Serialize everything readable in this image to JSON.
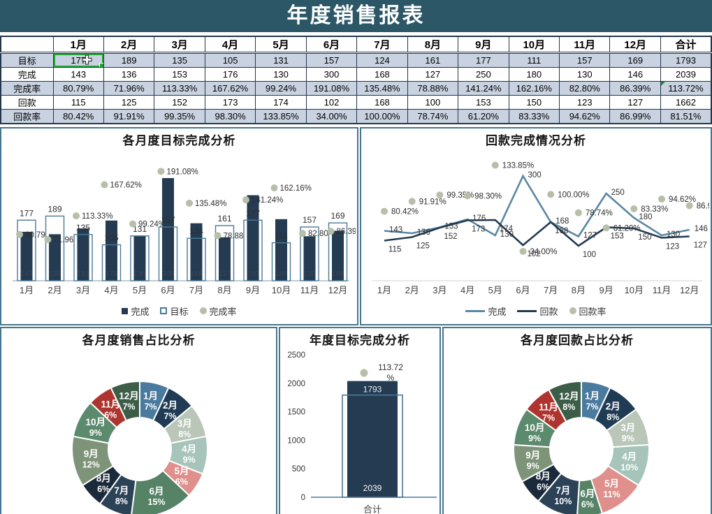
{
  "title": "年度销售报表",
  "table": {
    "corner": "",
    "columns": [
      "1月",
      "2月",
      "3月",
      "4月",
      "5月",
      "6月",
      "7月",
      "8月",
      "9月",
      "10月",
      "11月",
      "12月",
      "合计"
    ],
    "rows": [
      {
        "label": "目标",
        "banded": true,
        "values": [
          "177",
          "189",
          "135",
          "105",
          "131",
          "157",
          "124",
          "161",
          "177",
          "111",
          "157",
          "169",
          "1793"
        ]
      },
      {
        "label": "完成",
        "banded": false,
        "values": [
          "143",
          "136",
          "153",
          "176",
          "130",
          "300",
          "168",
          "127",
          "250",
          "180",
          "130",
          "146",
          "2039"
        ]
      },
      {
        "label": "完成率",
        "banded": true,
        "values": [
          "80.79%",
          "71.96%",
          "113.33%",
          "167.62%",
          "99.24%",
          "191.08%",
          "135.48%",
          "78.88%",
          "141.24%",
          "162.16%",
          "82.80%",
          "86.39%",
          "113.72%"
        ]
      },
      {
        "label": "回款",
        "banded": false,
        "values": [
          "115",
          "125",
          "152",
          "173",
          "174",
          "102",
          "168",
          "100",
          "153",
          "150",
          "123",
          "127",
          "1662"
        ]
      },
      {
        "label": "回款率",
        "banded": true,
        "values": [
          "80.42%",
          "91.91%",
          "99.35%",
          "98.30%",
          "133.85%",
          "34.00%",
          "100.00%",
          "78.74%",
          "61.20%",
          "83.33%",
          "94.62%",
          "86.99%",
          "81.51%"
        ]
      }
    ],
    "selected_cell": {
      "row": "目标",
      "column": "1月",
      "value": "177"
    },
    "error_flag_cell": {
      "row": "完成率",
      "column": "合计",
      "value": "113.72%"
    }
  },
  "chart_data": [
    {
      "type": "bar",
      "title": "各月度目标完成分析",
      "categories": [
        "1月",
        "2月",
        "3月",
        "4月",
        "5月",
        "6月",
        "7月",
        "8月",
        "9月",
        "10月",
        "11月",
        "12月"
      ],
      "series": [
        {
          "name": "完成",
          "values": [
            143,
            136,
            153,
            176,
            130,
            300,
            168,
            127,
            250,
            180,
            130,
            146
          ]
        },
        {
          "name": "目标",
          "values": [
            177,
            189,
            135,
            105,
            131,
            157,
            124,
            161,
            177,
            111,
            157,
            169
          ]
        },
        {
          "name": "完成率",
          "values": [
            "80.79%",
            "71.96%",
            "113.33%",
            "167.62%",
            "99.24%",
            "191.08%",
            "135.48%",
            "78.88%",
            "141.24%",
            "162.16%",
            "82.80%",
            "86.39%"
          ]
        }
      ],
      "legend_position": "bottom"
    },
    {
      "type": "line",
      "title": "回款完成情况分析",
      "categories": [
        "1月",
        "2月",
        "3月",
        "4月",
        "5月",
        "6月",
        "7月",
        "8月",
        "9月",
        "10月",
        "11月",
        "12月"
      ],
      "series": [
        {
          "name": "完成",
          "values": [
            143,
            136,
            153,
            176,
            130,
            300,
            168,
            127,
            250,
            180,
            130,
            146
          ]
        },
        {
          "name": "回款",
          "values": [
            115,
            125,
            152,
            173,
            174,
            102,
            168,
            100,
            153,
            150,
            123,
            127
          ]
        },
        {
          "name": "回款率",
          "values": [
            "80.42%",
            "91.91%",
            "99.35%",
            "98.30%",
            "133.85%",
            "34.00%",
            "100.00%",
            "78.74%",
            "61.20%",
            "83.33%",
            "94.62%",
            "86.99%"
          ]
        }
      ],
      "legend_position": "bottom"
    },
    {
      "type": "pie",
      "title": "各月度销售占比分析",
      "labels": [
        "1月",
        "2月",
        "3月",
        "4月",
        "5月",
        "6月",
        "7月",
        "8月",
        "9月",
        "10月",
        "11月",
        "12月"
      ],
      "percents": [
        7,
        7,
        8,
        9,
        6,
        15,
        8,
        6,
        12,
        9,
        6,
        7
      ]
    },
    {
      "type": "bar",
      "title": "年度目标完成分析",
      "xlabel": "合计",
      "target": 1793,
      "completed": 2039,
      "rate": "113.72%",
      "rate_line2": "%",
      "rate_line1": "113.72",
      "yticks": [
        0,
        500,
        1000,
        1500,
        2000,
        2500
      ],
      "ylim": [
        0,
        2500
      ]
    },
    {
      "type": "pie",
      "title": "各月度回款占比分析",
      "labels": [
        "1月",
        "2月",
        "3月",
        "4月",
        "5月",
        "6月",
        "7月",
        "8月",
        "9月",
        "10月",
        "11月",
        "12月"
      ],
      "percents": [
        7,
        8,
        9,
        10,
        11,
        6,
        10,
        6,
        9,
        9,
        7,
        8
      ]
    }
  ],
  "colors": {
    "header_teal": "#2b5767",
    "table_band": "#c8d2e0",
    "selection_green": "#23a338",
    "bar_dark": "#243b52",
    "bar_outline": "#4a7a96",
    "line_completed": "#5b87a2",
    "line_collection": "#243b52",
    "marker_sage": "#b7bfa8",
    "faint_label": "#39465a",
    "donut_palette": [
      "#4a7a9d",
      "#203b54",
      "#b9c6b8",
      "#a6c4ba",
      "#e0908c",
      "#568266",
      "#2b4257",
      "#1b2a3a",
      "#7e9478",
      "#5b8a6d",
      "#ae352f",
      "#3c5d48"
    ]
  }
}
